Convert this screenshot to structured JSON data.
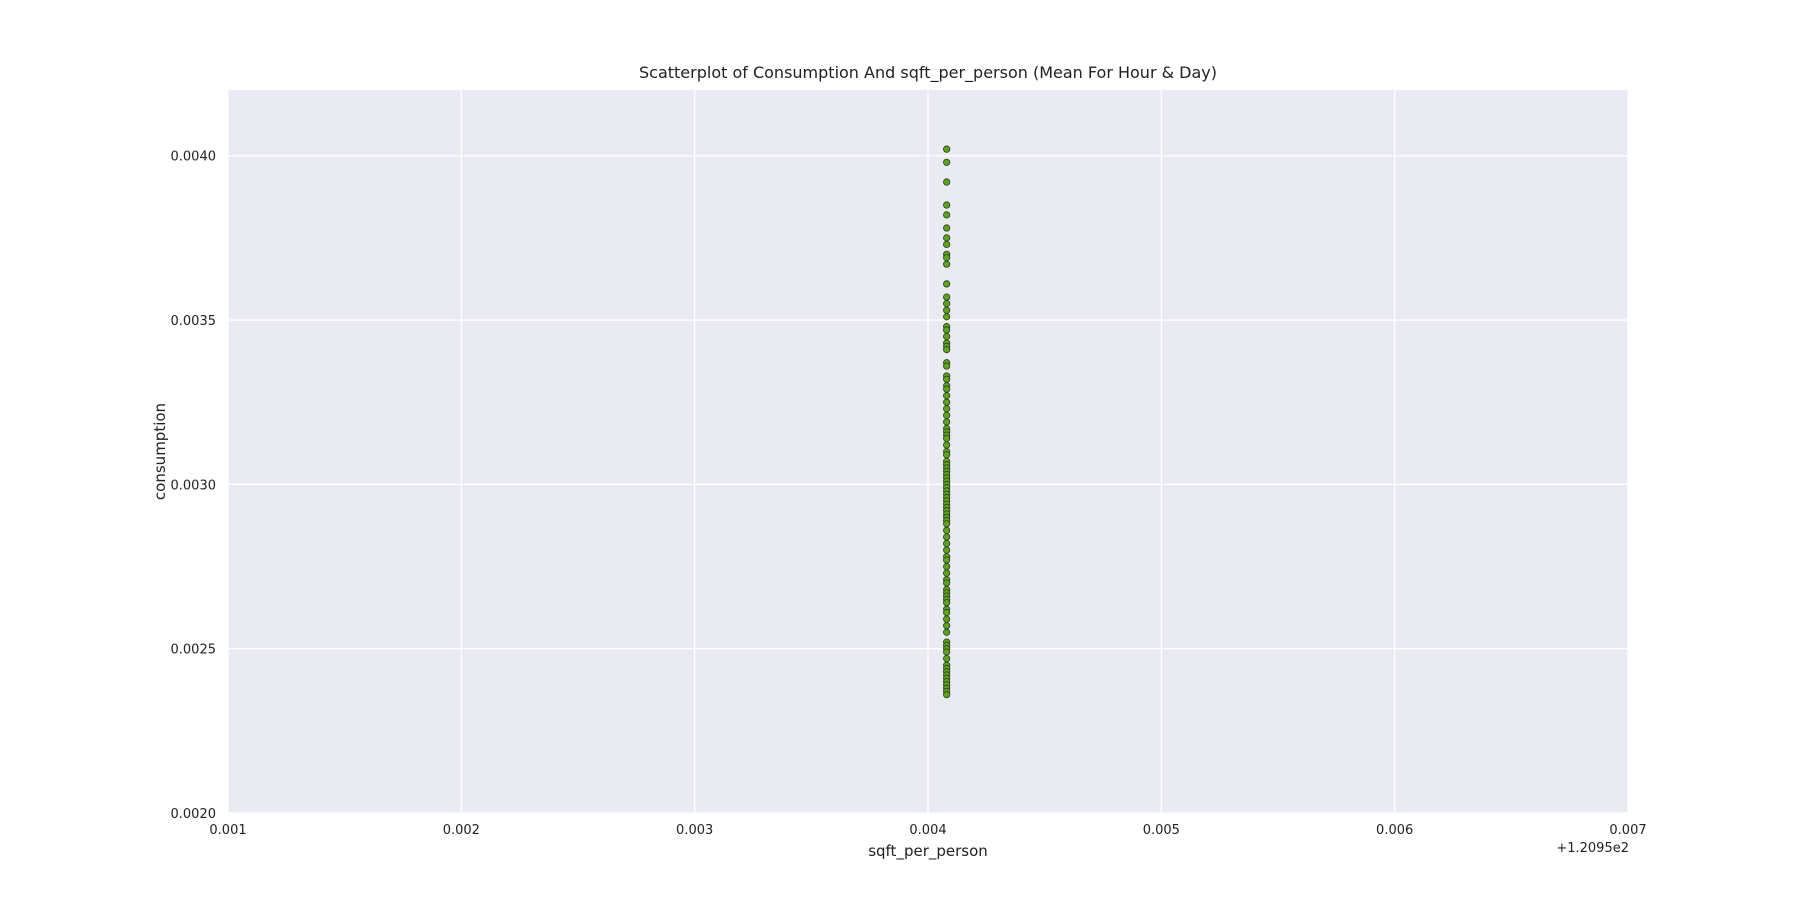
{
  "chart_data": {
    "type": "scatter",
    "title": "Scatterplot of Consumption And sqft_per_person (Mean For Hour & Day)",
    "xlabel": "sqft_per_person",
    "ylabel": "consumption",
    "x_offset_label": "+1.2095e2",
    "xlim": [
      0.001,
      0.007
    ],
    "ylim": [
      0.002,
      0.0042
    ],
    "x_ticks": [
      0.001,
      0.002,
      0.003,
      0.004,
      0.005,
      0.006,
      0.007
    ],
    "x_tick_labels": [
      "0.001",
      "0.002",
      "0.003",
      "0.004",
      "0.005",
      "0.006",
      "0.007"
    ],
    "y_ticks": [
      0.002,
      0.0025,
      0.003,
      0.0035,
      0.004
    ],
    "y_tick_labels": [
      "0.0020",
      "0.0025",
      "0.0030",
      "0.0035",
      "0.0040"
    ],
    "grid": true,
    "background_color": "#eaeaf2",
    "grid_color": "#ffffff",
    "marker_color": "#5aa51e",
    "marker_edge_color": "#2f3a1a",
    "series": [
      {
        "x_constant": 0.00408,
        "y": [
          0.00402,
          0.00398,
          0.00392,
          0.00385,
          0.00382,
          0.00378,
          0.00375,
          0.00373,
          0.0037,
          0.00369,
          0.00367,
          0.00361,
          0.00357,
          0.00355,
          0.00353,
          0.00351,
          0.00348,
          0.00347,
          0.00345,
          0.00343,
          0.00342,
          0.00341,
          0.00337,
          0.00336,
          0.00333,
          0.00332,
          0.0033,
          0.00329,
          0.00327,
          0.00325,
          0.00323,
          0.00321,
          0.00319,
          0.00317,
          0.00316,
          0.00315,
          0.00314,
          0.00312,
          0.0031,
          0.00309,
          0.00307,
          0.00306,
          0.00305,
          0.00304,
          0.00303,
          0.00302,
          0.00301,
          0.003,
          0.00299,
          0.00298,
          0.00297,
          0.00296,
          0.00295,
          0.00294,
          0.00293,
          0.00292,
          0.00291,
          0.0029,
          0.00289,
          0.00288,
          0.00286,
          0.00284,
          0.00282,
          0.0028,
          0.00278,
          0.00277,
          0.00275,
          0.00273,
          0.00271,
          0.0027,
          0.00268,
          0.00267,
          0.00266,
          0.00265,
          0.00264,
          0.00262,
          0.00261,
          0.00259,
          0.00257,
          0.00255,
          0.00252,
          0.00251,
          0.0025,
          0.00249,
          0.00247,
          0.00245,
          0.00244,
          0.00243,
          0.00242,
          0.00241,
          0.0024,
          0.00239,
          0.00238,
          0.00237,
          0.00236
        ]
      }
    ]
  }
}
